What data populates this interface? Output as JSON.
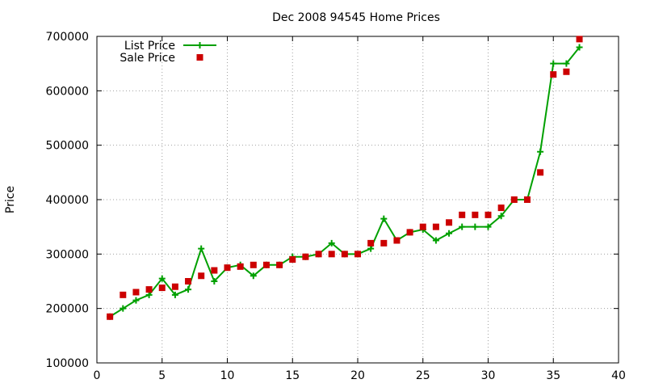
{
  "chart_data": {
    "type": "line",
    "title": "Dec 2008 94545 Home Prices",
    "xlabel": "",
    "ylabel": "Price",
    "xlim": [
      0,
      40
    ],
    "ylim": [
      100000,
      700000
    ],
    "x_ticks": [
      0,
      5,
      10,
      15,
      20,
      25,
      30,
      35,
      40
    ],
    "y_ticks": [
      100000,
      200000,
      300000,
      400000,
      500000,
      600000,
      700000
    ],
    "grid": true,
    "legend_position": "top-left",
    "series": [
      {
        "name": "List Price",
        "style": "line-plus",
        "color": "#00a000",
        "x": [
          1,
          2,
          3,
          4,
          5,
          6,
          7,
          8,
          9,
          10,
          11,
          12,
          13,
          14,
          15,
          16,
          17,
          18,
          19,
          20,
          21,
          22,
          23,
          24,
          25,
          26,
          27,
          28,
          29,
          30,
          31,
          32,
          33,
          34,
          35,
          36,
          37
        ],
        "values": [
          185000,
          200000,
          215000,
          225000,
          255000,
          225000,
          235000,
          310000,
          250000,
          275000,
          280000,
          260000,
          280000,
          280000,
          295000,
          295000,
          300000,
          320000,
          300000,
          300000,
          310000,
          365000,
          325000,
          340000,
          345000,
          325000,
          338000,
          350000,
          350000,
          350000,
          370000,
          400000,
          400000,
          488000,
          650000,
          650000,
          680000
        ]
      },
      {
        "name": "Sale Price",
        "style": "points-square",
        "color": "#cc0000",
        "x": [
          1,
          2,
          3,
          4,
          5,
          6,
          7,
          8,
          9,
          10,
          11,
          12,
          13,
          14,
          15,
          16,
          17,
          18,
          19,
          20,
          21,
          22,
          23,
          24,
          25,
          26,
          27,
          28,
          29,
          30,
          31,
          32,
          33,
          34,
          35,
          36,
          37
        ],
        "values": [
          185000,
          225000,
          230000,
          235000,
          238000,
          240000,
          250000,
          260000,
          270000,
          275000,
          277000,
          280000,
          280000,
          280000,
          290000,
          295000,
          300000,
          300000,
          300000,
          300000,
          320000,
          320000,
          325000,
          340000,
          350000,
          350000,
          358000,
          372000,
          372000,
          372000,
          385000,
          400000,
          400000,
          450000,
          630000,
          635000,
          695000
        ]
      }
    ]
  }
}
